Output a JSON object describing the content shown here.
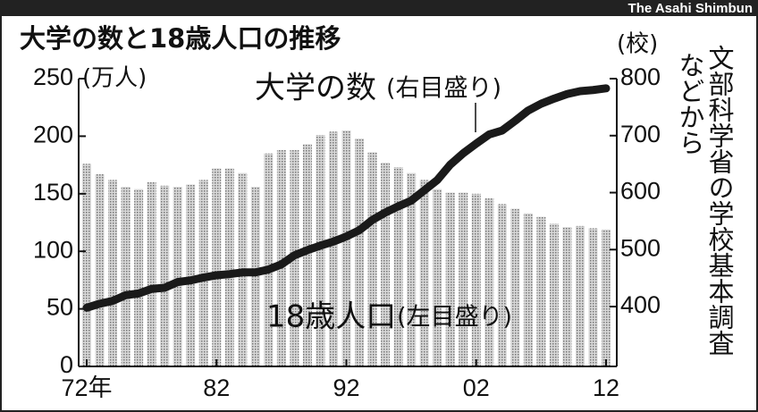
{
  "chart_data": {
    "type": "bar-line",
    "title": "大学の数と18歳人口の推移",
    "credit": "The Asahi Shimbun",
    "y_unit": "(万人)",
    "y2_unit": "(校)",
    "source": [
      "文部科学省の学校基本調査",
      "などから"
    ],
    "categories": [
      "72年",
      null,
      null,
      null,
      null,
      null,
      null,
      null,
      null,
      null,
      "82",
      null,
      null,
      null,
      null,
      null,
      null,
      null,
      null,
      null,
      "92",
      null,
      null,
      null,
      null,
      null,
      null,
      null,
      null,
      null,
      "02",
      null,
      null,
      null,
      null,
      null,
      null,
      null,
      null,
      null,
      "12"
    ],
    "series": [
      {
        "name": "18歳人口",
        "scale_note": "(左目盛り)",
        "color": "#9a9a9a",
        "axis": "y",
        "values": [
          176,
          167,
          162,
          156,
          154,
          160,
          157,
          156,
          158,
          162,
          172,
          172,
          168,
          156,
          185,
          188,
          188,
          193,
          201,
          204,
          205,
          198,
          186,
          177,
          173,
          168,
          162,
          154,
          151,
          151,
          150,
          146,
          141,
          137,
          133,
          130,
          124,
          121,
          122,
          120,
          119
        ]
      },
      {
        "name": "大学の数",
        "scale_note": "(右目盛り)",
        "color": "#1a1a1a",
        "axis": "y2",
        "values": [
          398,
          405,
          410,
          420,
          423,
          431,
          433,
          443,
          446,
          451,
          455,
          457,
          460,
          460,
          465,
          474,
          490,
          499,
          507,
          514,
          523,
          534,
          552,
          565,
          576,
          586,
          604,
          622,
          649,
          669,
          686,
          702,
          709,
          726,
          744,
          756,
          765,
          773,
          778,
          780,
          783
        ]
      }
    ],
    "ylim": [
      0,
      250
    ],
    "yticks": [
      0,
      50,
      100,
      150,
      200,
      250
    ],
    "y2lim": [
      295,
      800
    ],
    "y2ticks": [
      400,
      500,
      600,
      700,
      800
    ]
  }
}
